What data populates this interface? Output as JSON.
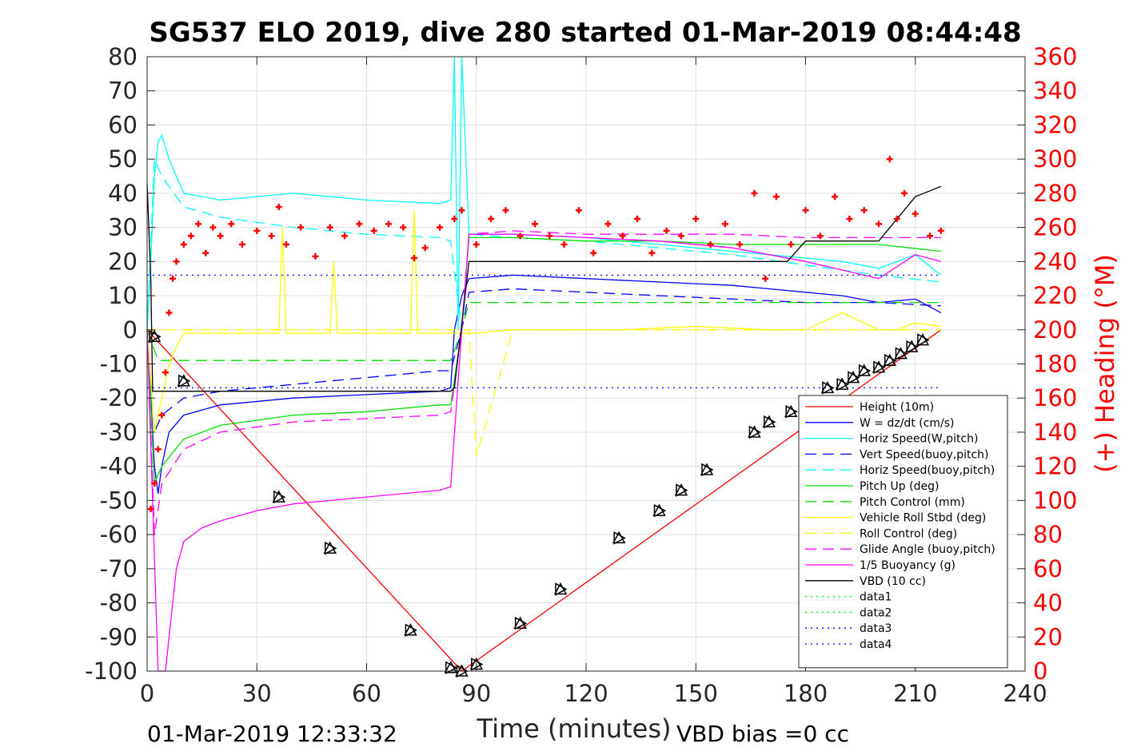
{
  "title": "SG537 ELO 2019, dive 280 started 01-Mar-2019 08:44:48",
  "footer_left": "01-Mar-2019 12:33:32",
  "footer_right": "VBD bias =0 cc",
  "chart_data": {
    "type": "line",
    "title": "SG537 ELO 2019, dive 280 started 01-Mar-2019 08:44:48",
    "xlabel": "Time (minutes)",
    "ylabel": "",
    "ylabel_right": "(+) Heading (°M)",
    "xlim": [
      0,
      240
    ],
    "ylim": [
      -100,
      80
    ],
    "ylim_right": [
      0,
      360
    ],
    "xticks": [
      0,
      30,
      60,
      90,
      120,
      150,
      180,
      210,
      240
    ],
    "yticks": [
      -100,
      -90,
      -80,
      -70,
      -60,
      -50,
      -40,
      -30,
      -20,
      -10,
      0,
      10,
      20,
      30,
      40,
      50,
      60,
      70,
      80
    ],
    "yticks_right": [
      0,
      20,
      40,
      60,
      80,
      100,
      120,
      140,
      160,
      180,
      200,
      220,
      240,
      260,
      280,
      300,
      320,
      340,
      360
    ],
    "grid": true,
    "legend_position": "lower-right",
    "colors": {
      "tick_right": "#ff0000",
      "axis": "#262626",
      "grid": "#dfdfdf"
    },
    "series": [
      {
        "name": "Height (10m)",
        "color": "#ff0000",
        "dash": "solid",
        "x": [
          0,
          86,
          217
        ],
        "y": [
          0,
          -100,
          0
        ]
      },
      {
        "name": "W = dz/dt (cm/s)",
        "color": "#0000ff",
        "dash": "solid",
        "x": [
          0,
          1,
          2,
          3,
          4,
          6,
          10,
          20,
          40,
          60,
          80,
          83,
          84,
          86,
          88,
          100,
          120,
          140,
          160,
          170,
          190,
          200,
          210,
          217
        ],
        "y": [
          0,
          -20,
          -40,
          -48,
          -40,
          -30,
          -25,
          -22,
          -20,
          -19,
          -18,
          -17,
          0,
          10,
          15,
          16,
          15,
          14,
          13,
          12,
          10,
          8,
          9,
          5
        ]
      },
      {
        "name": "Horiz Speed(W,pitch)",
        "color": "#00ffff",
        "dash": "solid",
        "x": [
          0,
          1,
          2,
          3,
          4,
          6,
          10,
          20,
          40,
          60,
          80,
          83,
          84,
          85,
          86,
          88,
          100,
          120,
          140,
          160,
          170,
          190,
          200,
          210,
          217
        ],
        "y": [
          0,
          20,
          45,
          55,
          57,
          50,
          40,
          38,
          40,
          38,
          37,
          38,
          80,
          0,
          80,
          28,
          28,
          27,
          25,
          23,
          22,
          20,
          18,
          22,
          16
        ]
      },
      {
        "name": "Vert Speed(buoy,pitch)",
        "color": "#0000ff",
        "dash": "dash",
        "x": [
          0,
          2,
          4,
          10,
          20,
          40,
          60,
          80,
          83,
          86,
          88,
          100,
          120,
          140,
          160,
          180,
          200,
          217
        ],
        "y": [
          0,
          -30,
          -25,
          -20,
          -18,
          -16,
          -14,
          -12,
          -12,
          0,
          11,
          12,
          11,
          10,
          9,
          8,
          8,
          7
        ]
      },
      {
        "name": "Horiz Speed(buoy,pitch)",
        "color": "#00ffff",
        "dash": "dash",
        "x": [
          0,
          2,
          4,
          10,
          20,
          40,
          60,
          80,
          83,
          86,
          88,
          100,
          120,
          140,
          160,
          180,
          200,
          217
        ],
        "y": [
          0,
          50,
          45,
          36,
          33,
          30,
          28,
          27,
          26,
          0,
          28,
          27,
          26,
          24,
          22,
          19,
          16,
          14
        ]
      },
      {
        "name": "Pitch Up (deg)",
        "color": "#00dd00",
        "dash": "solid",
        "x": [
          0,
          2,
          4,
          10,
          20,
          40,
          60,
          80,
          83,
          86,
          88,
          100,
          120,
          140,
          160,
          180,
          200,
          217
        ],
        "y": [
          0,
          -45,
          -40,
          -32,
          -28,
          -25,
          -24,
          -22,
          -22,
          0,
          27,
          27,
          26,
          26,
          25,
          25,
          25,
          23
        ]
      },
      {
        "name": "Pitch Control (mm)",
        "color": "#00dd00",
        "dash": "dash",
        "x": [
          0,
          3,
          5,
          10,
          83,
          86,
          88,
          120,
          180,
          217
        ],
        "y": [
          0,
          -9,
          -9,
          -9,
          -9,
          0,
          8,
          8,
          8,
          8
        ]
      },
      {
        "name": "Vehicle Roll Stbd (deg)",
        "color": "#ffff00",
        "dash": "solid",
        "x": [
          0,
          2,
          4,
          6,
          8,
          10,
          36,
          37,
          38,
          50,
          51,
          52,
          72,
          73,
          74,
          83,
          88,
          90,
          100,
          130,
          150,
          170,
          180,
          190,
          200,
          205,
          210,
          217
        ],
        "y": [
          0,
          -30,
          -20,
          -10,
          -5,
          -1,
          -1,
          30,
          -1,
          -1,
          20,
          -1,
          -1,
          35,
          -1,
          -1,
          -1,
          -1,
          0,
          0,
          1,
          0,
          0,
          5,
          0,
          0,
          2,
          1
        ]
      },
      {
        "name": "Roll Control (deg)",
        "color": "#ffff00",
        "dash": "dash",
        "x": [
          0,
          10,
          83,
          88,
          90,
          100,
          120,
          150,
          170,
          190,
          200,
          210,
          217
        ],
        "y": [
          0,
          0,
          0,
          0,
          -37,
          0,
          0,
          0,
          0,
          0,
          0,
          0,
          0
        ]
      },
      {
        "name": "Glide Angle (buoy,pitch)",
        "color": "#ff00ff",
        "dash": "dash",
        "x": [
          0,
          2,
          4,
          10,
          20,
          40,
          60,
          80,
          83,
          86,
          88,
          100,
          120,
          140,
          160,
          180,
          200,
          217
        ],
        "y": [
          0,
          -60,
          -45,
          -35,
          -30,
          -27,
          -26,
          -25,
          -24,
          0,
          28,
          29,
          28,
          28,
          28,
          27,
          27,
          27
        ]
      },
      {
        "name": "1/5 Buoyancy (g)",
        "color": "#ff00ff",
        "dash": "solid",
        "x": [
          0,
          3,
          5,
          8,
          10,
          15,
          20,
          30,
          40,
          60,
          80,
          83,
          86,
          88,
          100,
          120,
          140,
          160,
          180,
          200,
          210,
          217
        ],
        "y": [
          0,
          -100,
          -100,
          -70,
          -62,
          -58,
          -56,
          -53,
          -51,
          -49,
          -47,
          -46,
          0,
          28,
          28,
          27,
          26,
          24,
          20,
          15,
          22,
          20
        ]
      },
      {
        "name": "VBD (10 cc)",
        "color": "#000000",
        "dash": "solid",
        "x": [
          0,
          1,
          1.5,
          83,
          84,
          88,
          110,
          140,
          175,
          180,
          200,
          210,
          217
        ],
        "y": [
          43,
          15,
          -18,
          -18,
          -17,
          20,
          20,
          20,
          20,
          26,
          26,
          39,
          42
        ]
      },
      {
        "name": "data1",
        "color": "#00ff00",
        "dash": "dot",
        "x": [],
        "y": []
      },
      {
        "name": "data2",
        "color": "#00ff00",
        "dash": "dot",
        "x": [],
        "y": []
      },
      {
        "name": "data3",
        "color": "#0000ff",
        "dash": "dot",
        "x": [
          0,
          217
        ],
        "y": [
          -17,
          -17
        ]
      },
      {
        "name": "data4",
        "color": "#0000ff",
        "dash": "dot",
        "x": [
          0,
          217
        ],
        "y": [
          16,
          16
        ]
      }
    ],
    "heading_markers": {
      "name": "(+) Heading",
      "color": "#ff0000",
      "x": [
        1,
        2,
        3,
        4,
        5,
        6,
        7,
        8,
        10,
        12,
        14,
        16,
        18,
        20,
        23,
        26,
        30,
        34,
        36,
        38,
        42,
        46,
        50,
        54,
        58,
        62,
        66,
        70,
        73,
        76,
        80,
        84,
        86,
        90,
        94,
        98,
        102,
        106,
        110,
        114,
        118,
        122,
        126,
        130,
        134,
        138,
        142,
        146,
        150,
        154,
        158,
        162,
        166,
        169,
        172,
        176,
        180,
        184,
        188,
        192,
        196,
        200,
        203,
        205,
        207,
        210,
        214,
        217
      ],
      "y": [
        95,
        110,
        130,
        150,
        175,
        210,
        230,
        240,
        250,
        255,
        262,
        245,
        260,
        255,
        262,
        250,
        258,
        255,
        272,
        250,
        260,
        243,
        260,
        255,
        262,
        258,
        262,
        260,
        242,
        248,
        260,
        265,
        270,
        250,
        265,
        270,
        255,
        262,
        255,
        250,
        270,
        245,
        262,
        255,
        265,
        245,
        258,
        255,
        265,
        250,
        262,
        250,
        280,
        230,
        278,
        250,
        270,
        255,
        278,
        265,
        270,
        262,
        300,
        265,
        280,
        268,
        255,
        258
      ]
    },
    "triangle_markers": {
      "color": "#000000",
      "x": [
        2,
        10,
        36,
        50,
        72,
        83,
        86,
        90,
        102,
        113,
        129,
        140,
        146,
        153,
        166,
        170,
        176,
        181,
        186,
        190,
        193,
        196,
        200,
        203,
        206,
        209,
        212
      ],
      "y": [
        -2,
        -15,
        -49,
        -64,
        -88,
        -99,
        -100,
        -98,
        -86,
        -76,
        -61,
        -53,
        -47,
        -41,
        -30,
        -27,
        -24,
        -21,
        -17,
        -16,
        -14,
        -12,
        -11,
        -9,
        -7,
        -5,
        -3
      ]
    }
  }
}
